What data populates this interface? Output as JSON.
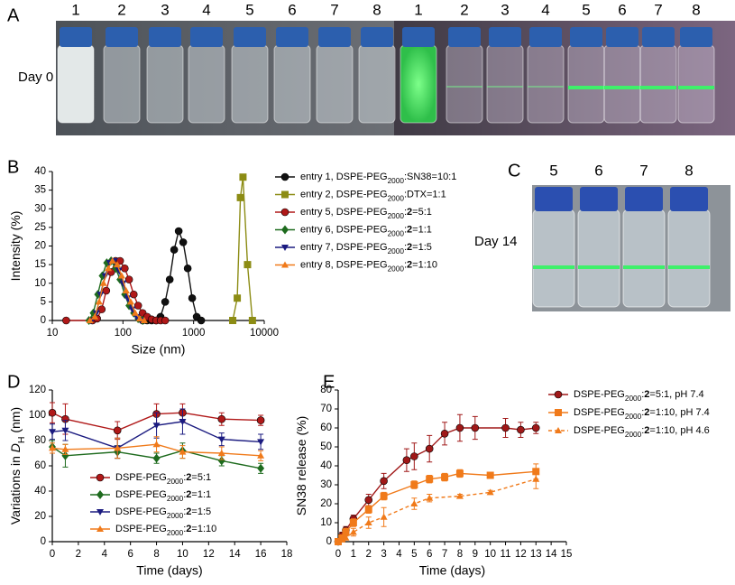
{
  "figure": {
    "panel_a": {
      "letter": "A",
      "label": "Day 0",
      "vials": [
        "1",
        "2",
        "3",
        "4",
        "5",
        "6",
        "7",
        "8",
        "1",
        "2",
        "3",
        "4",
        "5",
        "6",
        "7",
        "8"
      ]
    },
    "panel_c": {
      "letter": "C",
      "label": "Day 14",
      "vials": [
        "5",
        "6",
        "7",
        "8"
      ]
    }
  },
  "chart_data": [
    {
      "type": "line",
      "panel": "B",
      "x_label": "Size (nm)",
      "y_label": "Intensity (%)",
      "xscale": "log",
      "xlim": [
        10,
        10000
      ],
      "xticks": [
        10,
        100,
        1000,
        10000
      ],
      "ylim": [
        0,
        40
      ],
      "yticks": [
        0,
        5,
        10,
        15,
        20,
        25,
        30,
        35,
        40
      ],
      "series": [
        {
          "name": "entry 1, DSPE-PEG2000:SN38=10:1",
          "color": "#111111",
          "marker": "circle",
          "x": [
            190,
            220,
            255,
            295,
            340,
            396,
            459,
            531,
            615,
            712,
            825,
            955,
            1106,
            1281
          ],
          "values": [
            0,
            0,
            0,
            0,
            1,
            5,
            11,
            19,
            24,
            21,
            14,
            6,
            1,
            0
          ]
        },
        {
          "name": "entry 2, DSPE-PEG2000:DTX=1:1",
          "color": "#8c8c14",
          "marker": "square",
          "x": [
            3580,
            4150,
            4600,
            5000,
            5800,
            6800
          ],
          "values": [
            0,
            6,
            33,
            38.5,
            15,
            0
          ]
        },
        {
          "name": "entry 5, DSPE-PEG2000:2=5:1",
          "color": "#b01818",
          "marker": "circle",
          "x": [
            15.7,
            37,
            43,
            50,
            58,
            68,
            79,
            91,
            106,
            122,
            142,
            164,
            190,
            220,
            255,
            295,
            342,
            396
          ],
          "values": [
            0,
            0,
            0.5,
            3,
            8,
            13,
            16,
            16,
            14,
            11,
            7,
            4,
            2,
            1,
            0.3,
            0,
            0,
            0
          ]
        },
        {
          "name": "entry 6, DSPE-PEG2000:2=1:1",
          "color": "#1e6b1e",
          "marker": "diamond",
          "x": [
            33,
            38,
            44,
            51,
            59,
            68,
            79,
            91,
            106,
            122,
            142,
            164,
            190
          ],
          "values": [
            0,
            2,
            7,
            12,
            15.5,
            16,
            14,
            11,
            7,
            4,
            2,
            0.5,
            0
          ]
        },
        {
          "name": "entry 7, DSPE-PEG2000:2=1:5",
          "color": "#1b1b80",
          "marker": "tri-down",
          "x": [
            36,
            42,
            48,
            56,
            65,
            75,
            87,
            100,
            116,
            135,
            156,
            181
          ],
          "values": [
            0,
            2,
            7,
            12,
            15.5,
            16,
            13.5,
            10,
            6,
            3,
            1,
            0
          ]
        },
        {
          "name": "entry 8, DSPE-PEG2000:2=1:10",
          "color": "#f07a1a",
          "marker": "tri-up",
          "x": [
            34,
            40,
            46,
            53,
            62,
            71,
            83,
            96,
            111,
            129,
            149,
            173,
            200
          ],
          "values": [
            0,
            1,
            5,
            10,
            14,
            16,
            15,
            12,
            8,
            5,
            2,
            0.5,
            0
          ]
        }
      ]
    },
    {
      "type": "line",
      "panel": "D",
      "x_label": "Time (days)",
      "y_label": "Variations in DH (nm)",
      "xlim": [
        0,
        18
      ],
      "xticks": [
        0,
        2,
        4,
        6,
        8,
        10,
        12,
        14,
        16,
        18
      ],
      "ylim": [
        0,
        120
      ],
      "yticks": [
        0,
        20,
        40,
        60,
        80,
        100,
        120
      ],
      "series": [
        {
          "name": "DSPE-PEG2000:2=5:1",
          "color": "#b01818",
          "marker": "circle",
          "x": [
            0,
            1,
            5,
            8,
            10,
            13,
            16
          ],
          "values": [
            102,
            97,
            88,
            101,
            102,
            97,
            96
          ],
          "errors": [
            8,
            12,
            7,
            8,
            7,
            5,
            4
          ]
        },
        {
          "name": "DSPE-PEG2000:2=1:1",
          "color": "#1e6b1e",
          "marker": "diamond",
          "x": [
            0,
            1,
            5,
            8,
            10,
            13,
            16
          ],
          "values": [
            75,
            68,
            71,
            66,
            72,
            64,
            58
          ],
          "errors": [
            5,
            9,
            5,
            4,
            6,
            4,
            4
          ]
        },
        {
          "name": "DSPE-PEG2000:2=1:5",
          "color": "#1b1b80",
          "marker": "tri-down",
          "x": [
            0,
            1,
            5,
            8,
            10,
            13,
            16
          ],
          "values": [
            87,
            88,
            74,
            92,
            95,
            81,
            79
          ],
          "errors": [
            6,
            8,
            8,
            10,
            10,
            5,
            6
          ]
        },
        {
          "name": "DSPE-PEG2000:2=1:10",
          "color": "#f07a1a",
          "marker": "tri-up",
          "x": [
            0,
            1,
            5,
            8,
            10,
            13,
            16
          ],
          "values": [
            74,
            73,
            74,
            77,
            71,
            70,
            68
          ],
          "errors": [
            4,
            4,
            8,
            6,
            5,
            5,
            4
          ]
        }
      ]
    },
    {
      "type": "line",
      "panel": "E",
      "x_label": "Time (days)",
      "y_label": "SN38 release (%)",
      "xlim": [
        0,
        15
      ],
      "xticks": [
        0,
        1,
        2,
        3,
        4,
        5,
        6,
        7,
        8,
        9,
        10,
        11,
        12,
        13,
        14,
        15
      ],
      "ylim": [
        0,
        80
      ],
      "yticks": [
        0,
        10,
        20,
        30,
        40,
        50,
        60,
        70,
        80
      ],
      "series": [
        {
          "name": "DSPE-PEG2000:2=5:1, pH 7.4",
          "color": "#a01818",
          "marker": "circle",
          "dash": false,
          "x": [
            0,
            0.25,
            0.5,
            1,
            2,
            3,
            4.5,
            5,
            6,
            7,
            8,
            9,
            11,
            12,
            13
          ],
          "values": [
            0,
            3,
            6,
            12,
            22,
            32,
            43,
            45,
            49,
            57,
            60,
            60,
            60,
            59,
            60
          ],
          "errors": [
            0,
            2,
            2,
            2,
            3,
            4,
            6,
            7,
            7,
            6,
            7,
            6,
            5,
            4,
            3
          ]
        },
        {
          "name": "DSPE-PEG2000:2=1:10, pH 7.4",
          "color": "#f07a1a",
          "marker": "square",
          "dash": false,
          "x": [
            0,
            0.25,
            0.5,
            1,
            2,
            3,
            5,
            6,
            7,
            8,
            10,
            13
          ],
          "values": [
            0,
            2,
            5,
            10,
            17,
            24,
            30,
            33,
            34,
            36,
            35,
            37
          ],
          "errors": [
            0,
            1,
            2,
            2,
            2,
            2,
            2,
            2,
            2,
            2,
            1,
            4
          ]
        },
        {
          "name": "DSPE-PEG2000:2=1:10, pH 4.6",
          "color": "#f07a1a",
          "marker": "tri-up",
          "dash": true,
          "x": [
            0,
            0.25,
            0.5,
            1,
            2,
            3,
            5,
            6,
            8,
            10,
            13
          ],
          "values": [
            0,
            1,
            2,
            5,
            10,
            13,
            20,
            23,
            24,
            26,
            33
          ],
          "errors": [
            0,
            1,
            1,
            2,
            3,
            5,
            3,
            2,
            1,
            1,
            5
          ]
        }
      ]
    }
  ]
}
